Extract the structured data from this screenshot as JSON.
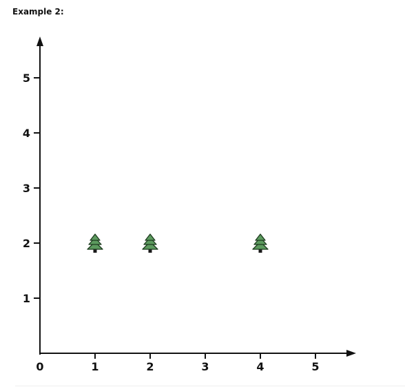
{
  "header": {
    "title": "Example 2:"
  },
  "chart_data": {
    "type": "scatter",
    "title": "Example 2:",
    "xlabel": "",
    "ylabel": "",
    "xlim": [
      0,
      5.75
    ],
    "ylim": [
      0,
      5.75
    ],
    "x_ticks": [
      "0",
      "1",
      "2",
      "3",
      "4",
      "5"
    ],
    "y_ticks": [
      "1",
      "2",
      "3",
      "4",
      "5"
    ],
    "grid": false,
    "marker": "tree-icon",
    "colors": {
      "axis": "#111111",
      "tree_fill": "#5c9a5e",
      "tree_stroke": "#1d3b1f",
      "trunk": "#1a1a1a"
    },
    "points": [
      {
        "x": 1,
        "y": 2
      },
      {
        "x": 2,
        "y": 2
      },
      {
        "x": 4,
        "y": 2
      }
    ]
  }
}
